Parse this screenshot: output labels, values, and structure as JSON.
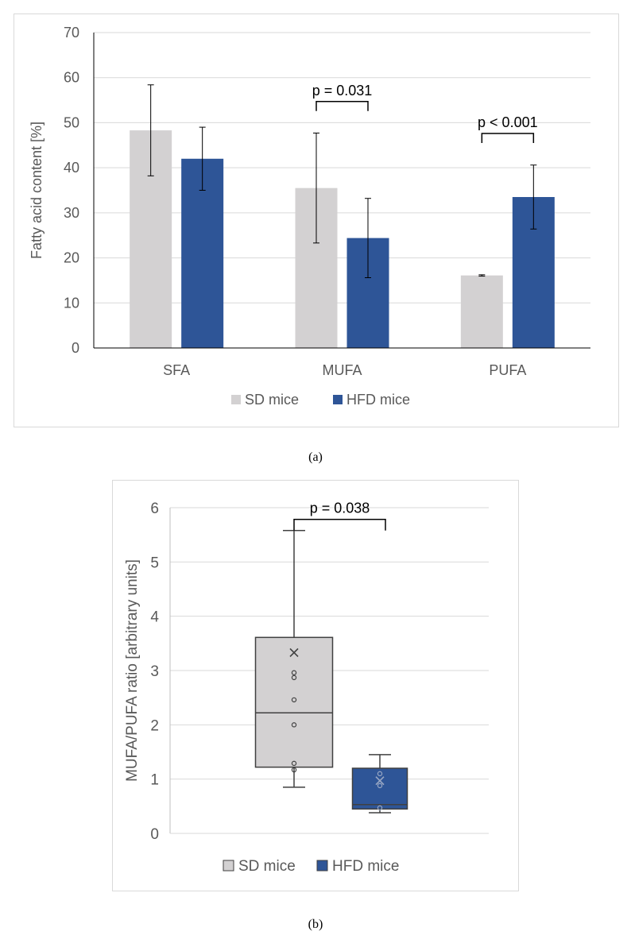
{
  "figures": {
    "a": {
      "caption": "(a)"
    },
    "b": {
      "caption": "(b)"
    }
  },
  "colors": {
    "sd": "#d3d1d2",
    "hfd": "#2e5597",
    "grid": "#d9d9d9",
    "axis_text": "#595959"
  },
  "chart_data": [
    {
      "type": "bar",
      "ylabel": "Fatty acid content [%]",
      "ylim": [
        0,
        70
      ],
      "yticks": [
        0,
        10,
        20,
        30,
        40,
        50,
        60,
        70
      ],
      "categories": [
        "SFA",
        "MUFA",
        "PUFA"
      ],
      "series": [
        {
          "name": "SD mice",
          "color": "#d3d1d2",
          "values": [
            48.3,
            35.5,
            16.1
          ],
          "err": [
            10.1,
            12.2,
            0.15
          ]
        },
        {
          "name": "HFD mice",
          "color": "#2e5597",
          "values": [
            42.0,
            24.4,
            33.5
          ],
          "err": [
            7.0,
            8.8,
            7.1
          ]
        }
      ],
      "annotations": [
        {
          "category": "MUFA",
          "text": "p = 0.031"
        },
        {
          "category": "PUFA",
          "text": "p < 0.001"
        }
      ],
      "legend": [
        "SD mice",
        "HFD mice"
      ],
      "legend_position": "bottom",
      "grid": true
    },
    {
      "type": "box",
      "ylabel": "MUFA/PUFA ratio [arbitrary units]",
      "ylim": [
        0,
        6
      ],
      "yticks": [
        0,
        1,
        2,
        3,
        4,
        5,
        6
      ],
      "groups": [
        {
          "name": "SD mice",
          "color": "#d3d1d2",
          "min": 0.85,
          "q1": 1.22,
          "median": 2.22,
          "q3": 3.61,
          "max": 5.58,
          "mean": 3.33,
          "points": [
            1.17,
            1.29,
            2.0,
            2.46,
            2.87,
            2.96
          ]
        },
        {
          "name": "HFD mice",
          "color": "#2e5597",
          "min": 0.38,
          "q1": 0.45,
          "median": 0.53,
          "q3": 1.2,
          "max": 1.45,
          "mean": 0.97,
          "points": [
            0.47,
            0.88,
            1.1
          ]
        }
      ],
      "annotations": [
        {
          "text": "p = 0.038"
        }
      ],
      "legend": [
        "SD mice",
        "HFD mice"
      ],
      "legend_position": "bottom",
      "grid": true
    }
  ]
}
